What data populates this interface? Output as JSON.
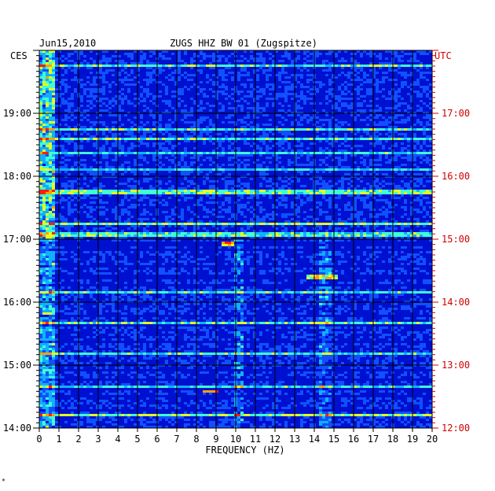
{
  "chart_data": {
    "type": "heatmap",
    "title_left": "Jun15,2010",
    "title_center": "ZUGS HHZ BW 01 (Zugspitze)",
    "left_timezone": "CES",
    "right_timezone": "UTC",
    "xlabel": "FREQUENCY (HZ)",
    "xlim": [
      0,
      20
    ],
    "x_ticks": [
      "0",
      "1",
      "2",
      "3",
      "4",
      "5",
      "6",
      "7",
      "8",
      "9",
      "10",
      "11",
      "12",
      "13",
      "14",
      "15",
      "16",
      "17",
      "18",
      "19",
      "20"
    ],
    "y_range_hours_left": [
      14,
      20
    ],
    "y_ticks_left": [
      {
        "hour": 19,
        "label": "19:00"
      },
      {
        "hour": 18,
        "label": "18:00"
      },
      {
        "hour": 17,
        "label": "17:00"
      },
      {
        "hour": 16,
        "label": "16:00"
      },
      {
        "hour": 15,
        "label": "15:00"
      },
      {
        "hour": 14,
        "label": "14:00"
      }
    ],
    "y_ticks_right": [
      {
        "hour": 19,
        "label": "17:00"
      },
      {
        "hour": 18,
        "label": "16:00"
      },
      {
        "hour": 17,
        "label": "15:00"
      },
      {
        "hour": 16,
        "label": "14:00"
      },
      {
        "hour": 15,
        "label": "13:00"
      },
      {
        "hour": 14,
        "label": "12:00"
      }
    ],
    "grid": true,
    "colormap": [
      "#0000b0",
      "#0018e0",
      "#1050ff",
      "#10b0ff",
      "#40ffd0",
      "#e0ff20",
      "#ffa000",
      "#ff2000"
    ],
    "hot_spots": [
      {
        "hour": 16.93,
        "freq": [
          9.3,
          9.9
        ],
        "level": 0.9
      },
      {
        "hour": 14.58,
        "freq": [
          8.3,
          9.1
        ],
        "level": 1.0
      },
      {
        "hour": 16.4,
        "freq": [
          13.6,
          15.2
        ],
        "level": 0.8
      },
      {
        "hour": 15.82,
        "freq": [
          0.2,
          0.8
        ],
        "level": 0.8
      },
      {
        "hour": 14.92,
        "freq": [
          0.2,
          0.8
        ],
        "level": 0.75
      }
    ]
  },
  "colors": {
    "axis_text": "#000000",
    "right_axis_text": "#d00000",
    "grid_line": "#000000"
  },
  "footer_mark": "*"
}
